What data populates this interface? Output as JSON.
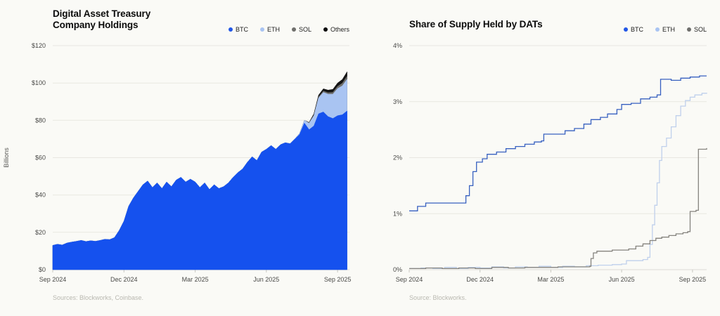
{
  "chart_data": [
    {
      "type": "area",
      "stacked": true,
      "title": "Digital Asset Treasury Company Holdings",
      "title_lines": [
        "Digital Asset Treasury",
        "Company Holdings"
      ],
      "ylabel": "Billions",
      "source": "Sources: Blockworks, Coinbase.",
      "x_unit": "months since Sep 2024",
      "xlim": [
        0,
        12.5
      ],
      "ylim": [
        0,
        120
      ],
      "grid": true,
      "legend_position": "top-right",
      "y_ticks": [
        {
          "value": 0,
          "label": "$0"
        },
        {
          "value": 20,
          "label": "$20"
        },
        {
          "value": 40,
          "label": "$40"
        },
        {
          "value": 60,
          "label": "$60"
        },
        {
          "value": 80,
          "label": "$80"
        },
        {
          "value": 100,
          "label": "$100"
        },
        {
          "value": 120,
          "label": "$120"
        }
      ],
      "x_ticks": [
        {
          "value": 0,
          "label": "Sep 2024"
        },
        {
          "value": 3,
          "label": "Dec 2024"
        },
        {
          "value": 6,
          "label": "Mar 2025"
        },
        {
          "value": 9,
          "label": "Jun 2025"
        },
        {
          "value": 12,
          "label": "Sep 2025"
        }
      ],
      "x": [
        0,
        0.2,
        0.4,
        0.6,
        0.8,
        1,
        1.2,
        1.4,
        1.6,
        1.8,
        2,
        2.2,
        2.4,
        2.6,
        2.8,
        3,
        3.2,
        3.4,
        3.6,
        3.8,
        4,
        4.2,
        4.4,
        4.6,
        4.8,
        5,
        5.2,
        5.4,
        5.6,
        5.8,
        6,
        6.2,
        6.4,
        6.6,
        6.8,
        7,
        7.2,
        7.4,
        7.6,
        7.8,
        8,
        8.2,
        8.4,
        8.6,
        8.8,
        9,
        9.2,
        9.4,
        9.6,
        9.8,
        10,
        10.2,
        10.4,
        10.6,
        10.8,
        11,
        11.2,
        11.4,
        11.6,
        11.8,
        12,
        12.2,
        12.4
      ],
      "series": [
        {
          "name": "BTC",
          "color": "#1551EE",
          "legend_color": "#2257E6",
          "values": [
            13,
            13.6,
            13.2,
            14.3,
            14.8,
            15.2,
            15.7,
            15.1,
            15.5,
            15.2,
            15.7,
            16.3,
            16.1,
            17.2,
            21,
            26,
            34,
            38.5,
            42,
            45.5,
            47.5,
            44,
            46.5,
            43.5,
            47,
            44.5,
            48,
            49.5,
            47,
            48.5,
            47,
            44,
            46.5,
            43,
            45.5,
            43.5,
            44.5,
            46.5,
            49.5,
            52,
            54,
            57.5,
            60.5,
            58.5,
            63,
            64.5,
            66.5,
            64.5,
            67,
            68,
            67.5,
            70,
            72.5,
            78.5,
            75,
            77,
            83.5,
            84.5,
            82,
            81,
            82.5,
            83,
            85
          ]
        },
        {
          "name": "ETH",
          "color": "#A9C4F2",
          "legend_color": "#A9C4F2",
          "values": [
            0,
            0,
            0,
            0,
            0,
            0,
            0,
            0,
            0,
            0,
            0,
            0,
            0,
            0,
            0,
            0,
            0,
            0,
            0,
            0,
            0,
            0,
            0,
            0,
            0,
            0,
            0,
            0,
            0,
            0,
            0,
            0,
            0,
            0,
            0,
            0,
            0,
            0,
            0,
            0,
            0,
            0,
            0,
            0,
            0,
            0,
            0,
            0,
            0,
            0,
            0,
            0,
            0.5,
            1.5,
            3.5,
            5.5,
            8.5,
            10.5,
            12,
            13,
            14.5,
            15.5,
            17
          ]
        },
        {
          "name": "SOL",
          "color": "#6F6F6C",
          "legend_color": "#6F6F6C",
          "values": [
            0,
            0,
            0,
            0,
            0,
            0,
            0,
            0,
            0,
            0,
            0,
            0,
            0,
            0,
            0,
            0,
            0,
            0,
            0,
            0,
            0,
            0,
            0,
            0,
            0,
            0,
            0,
            0,
            0,
            0,
            0,
            0,
            0,
            0,
            0,
            0,
            0,
            0,
            0,
            0,
            0,
            0,
            0,
            0,
            0,
            0,
            0,
            0,
            0,
            0,
            0,
            0,
            0,
            0,
            0,
            0.3,
            0.5,
            0.7,
            0.8,
            1,
            1.2,
            1.4,
            1.6
          ]
        },
        {
          "name": "Others",
          "color": "#141414",
          "legend_color": "#0A0A0A",
          "values": [
            0,
            0,
            0,
            0,
            0,
            0,
            0,
            0,
            0,
            0,
            0,
            0,
            0,
            0,
            0,
            0,
            0,
            0,
            0,
            0,
            0,
            0,
            0,
            0,
            0,
            0,
            0,
            0,
            0,
            0,
            0,
            0,
            0,
            0,
            0,
            0,
            0,
            0,
            0,
            0,
            0,
            0,
            0,
            0,
            0,
            0,
            0,
            0,
            0,
            0,
            0,
            0,
            0,
            0,
            0.4,
            0.7,
            1,
            1.2,
            1.4,
            1.6,
            1.8,
            2,
            2.4
          ]
        }
      ]
    },
    {
      "type": "step_line",
      "stacked": false,
      "title": "Share of Supply Held by DATs",
      "title_lines": [
        "Share of Supply Held by DATs"
      ],
      "ylabel": "",
      "source": "Source: Blockworks.",
      "x_unit": "months since Sep 2024",
      "xlim": [
        0,
        12.6
      ],
      "ylim": [
        0,
        4
      ],
      "grid": true,
      "legend_position": "top-right",
      "y_ticks": [
        {
          "value": 0,
          "label": "0%"
        },
        {
          "value": 1,
          "label": "1%"
        },
        {
          "value": 2,
          "label": "2%"
        },
        {
          "value": 3,
          "label": "3%"
        },
        {
          "value": 4,
          "label": "4%"
        }
      ],
      "x_ticks": [
        {
          "value": 0,
          "label": "Sep 2024"
        },
        {
          "value": 3,
          "label": "Dec 2024"
        },
        {
          "value": 6,
          "label": "Mar 2025"
        },
        {
          "value": 9,
          "label": "Jun 2025"
        },
        {
          "value": 12,
          "label": "Sep 2025"
        }
      ],
      "series": [
        {
          "name": "BTC",
          "color": "#3760C0",
          "legend_color": "#2257E6",
          "values": [
            [
              0,
              1.05
            ],
            [
              0.3,
              1.05
            ],
            [
              0.35,
              1.13
            ],
            [
              0.6,
              1.13
            ],
            [
              0.7,
              1.19
            ],
            [
              2.3,
              1.19
            ],
            [
              2.4,
              1.32
            ],
            [
              2.55,
              1.5
            ],
            [
              2.7,
              1.75
            ],
            [
              2.85,
              1.92
            ],
            [
              3.1,
              1.98
            ],
            [
              3.3,
              2.06
            ],
            [
              3.7,
              2.1
            ],
            [
              4.1,
              2.16
            ],
            [
              4.5,
              2.2
            ],
            [
              4.9,
              2.24
            ],
            [
              5.3,
              2.28
            ],
            [
              5.6,
              2.3
            ],
            [
              5.7,
              2.42
            ],
            [
              6.3,
              2.42
            ],
            [
              6.6,
              2.48
            ],
            [
              7,
              2.52
            ],
            [
              7.4,
              2.6
            ],
            [
              7.7,
              2.68
            ],
            [
              8.1,
              2.72
            ],
            [
              8.4,
              2.78
            ],
            [
              8.8,
              2.86
            ],
            [
              9,
              2.95
            ],
            [
              9.4,
              2.97
            ],
            [
              9.8,
              3.05
            ],
            [
              10.2,
              3.08
            ],
            [
              10.5,
              3.12
            ],
            [
              10.65,
              3.4
            ],
            [
              11.1,
              3.38
            ],
            [
              11.5,
              3.42
            ],
            [
              11.9,
              3.44
            ],
            [
              12.3,
              3.46
            ],
            [
              12.6,
              3.46
            ]
          ]
        },
        {
          "name": "ETH",
          "color": "#BFD0EC",
          "legend_color": "#A9C4F2",
          "values": [
            [
              0,
              0.02
            ],
            [
              0.5,
              0.03
            ],
            [
              1,
              0.02
            ],
            [
              1.5,
              0.04
            ],
            [
              2,
              0.02
            ],
            [
              2.5,
              0.04
            ],
            [
              3,
              0.03
            ],
            [
              3.5,
              0.05
            ],
            [
              4,
              0.03
            ],
            [
              4.5,
              0.05
            ],
            [
              5,
              0.04
            ],
            [
              5.5,
              0.06
            ],
            [
              6,
              0.04
            ],
            [
              6.5,
              0.06
            ],
            [
              7,
              0.05
            ],
            [
              7.5,
              0.07
            ],
            [
              8,
              0.08
            ],
            [
              8.6,
              0.09
            ],
            [
              9,
              0.1
            ],
            [
              9.2,
              0.16
            ],
            [
              9.9,
              0.18
            ],
            [
              10.1,
              0.22
            ],
            [
              10.2,
              0.45
            ],
            [
              10.3,
              0.8
            ],
            [
              10.4,
              1.15
            ],
            [
              10.5,
              1.55
            ],
            [
              10.6,
              1.95
            ],
            [
              10.7,
              2.2
            ],
            [
              10.9,
              2.35
            ],
            [
              11.1,
              2.55
            ],
            [
              11.3,
              2.75
            ],
            [
              11.5,
              2.92
            ],
            [
              11.7,
              3.02
            ],
            [
              11.9,
              3.08
            ],
            [
              12.1,
              3.12
            ],
            [
              12.4,
              3.15
            ],
            [
              12.6,
              3.16
            ]
          ]
        },
        {
          "name": "SOL",
          "color": "#85837E",
          "legend_color": "#6F6F6C",
          "values": [
            [
              0,
              0.02
            ],
            [
              0.7,
              0.03
            ],
            [
              1.4,
              0.02
            ],
            [
              2.1,
              0.03
            ],
            [
              2.8,
              0.02
            ],
            [
              3.5,
              0.04
            ],
            [
              4.2,
              0.03
            ],
            [
              4.9,
              0.04
            ],
            [
              5.6,
              0.04
            ],
            [
              6.3,
              0.05
            ],
            [
              7,
              0.05
            ],
            [
              7.65,
              0.06
            ],
            [
              7.7,
              0.2
            ],
            [
              7.8,
              0.3
            ],
            [
              7.95,
              0.33
            ],
            [
              8.6,
              0.35
            ],
            [
              9.3,
              0.37
            ],
            [
              9.6,
              0.42
            ],
            [
              9.9,
              0.46
            ],
            [
              10.2,
              0.52
            ],
            [
              10.45,
              0.56
            ],
            [
              10.7,
              0.58
            ],
            [
              11,
              0.61
            ],
            [
              11.3,
              0.64
            ],
            [
              11.6,
              0.66
            ],
            [
              11.8,
              0.68
            ],
            [
              11.9,
              1.04
            ],
            [
              12.15,
              1.06
            ],
            [
              12.25,
              2.15
            ],
            [
              12.6,
              2.17
            ]
          ]
        }
      ]
    }
  ]
}
